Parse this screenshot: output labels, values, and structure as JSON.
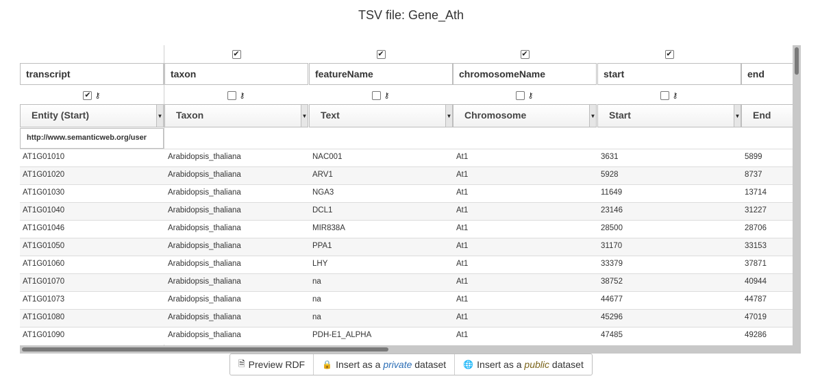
{
  "title": "TSV file: Gene_Ath",
  "columns": [
    {
      "name": "transcript",
      "type": "Entity (Start)",
      "header_checked": null,
      "option_checked": true
    },
    {
      "name": "taxon",
      "type": "Taxon",
      "header_checked": true,
      "option_checked": false
    },
    {
      "name": "featureName",
      "type": "Text",
      "header_checked": true,
      "option_checked": false
    },
    {
      "name": "chromosomeName",
      "type": "Chromosome",
      "header_checked": true,
      "option_checked": false
    },
    {
      "name": "start",
      "type": "Start",
      "header_checked": true,
      "option_checked": false
    },
    {
      "name": "end",
      "type": "End",
      "header_checked": null,
      "option_checked": null
    }
  ],
  "uri_prefix": "http://www.semanticweb.org/user",
  "rows": [
    [
      "AT1G01010",
      "Arabidopsis_thaliana",
      "NAC001",
      "At1",
      "3631",
      "5899"
    ],
    [
      "AT1G01020",
      "Arabidopsis_thaliana",
      "ARV1",
      "At1",
      "5928",
      "8737"
    ],
    [
      "AT1G01030",
      "Arabidopsis_thaliana",
      "NGA3",
      "At1",
      "11649",
      "13714"
    ],
    [
      "AT1G01040",
      "Arabidopsis_thaliana",
      "DCL1",
      "At1",
      "23146",
      "31227"
    ],
    [
      "AT1G01046",
      "Arabidopsis_thaliana",
      "MIR838A",
      "At1",
      "28500",
      "28706"
    ],
    [
      "AT1G01050",
      "Arabidopsis_thaliana",
      "PPA1",
      "At1",
      "31170",
      "33153"
    ],
    [
      "AT1G01060",
      "Arabidopsis_thaliana",
      "LHY",
      "At1",
      "33379",
      "37871"
    ],
    [
      "AT1G01070",
      "Arabidopsis_thaliana",
      "na",
      "At1",
      "38752",
      "40944"
    ],
    [
      "AT1G01073",
      "Arabidopsis_thaliana",
      "na",
      "At1",
      "44677",
      "44787"
    ],
    [
      "AT1G01080",
      "Arabidopsis_thaliana",
      "na",
      "At1",
      "45296",
      "47019"
    ],
    [
      "AT1G01090",
      "Arabidopsis_thaliana",
      "PDH-E1_ALPHA",
      "At1",
      "47485",
      "49286"
    ]
  ],
  "buttons": {
    "preview": "Preview RDF",
    "insert_private_prefix": "Insert as a ",
    "insert_private_em": "private",
    "insert_private_suffix": " dataset",
    "insert_public_prefix": "Insert as a ",
    "insert_public_em": "public",
    "insert_public_suffix": " dataset"
  },
  "icons": {
    "preview": "document-icon",
    "private": "lock-icon",
    "public": "globe-icon",
    "key": "key-icon"
  }
}
